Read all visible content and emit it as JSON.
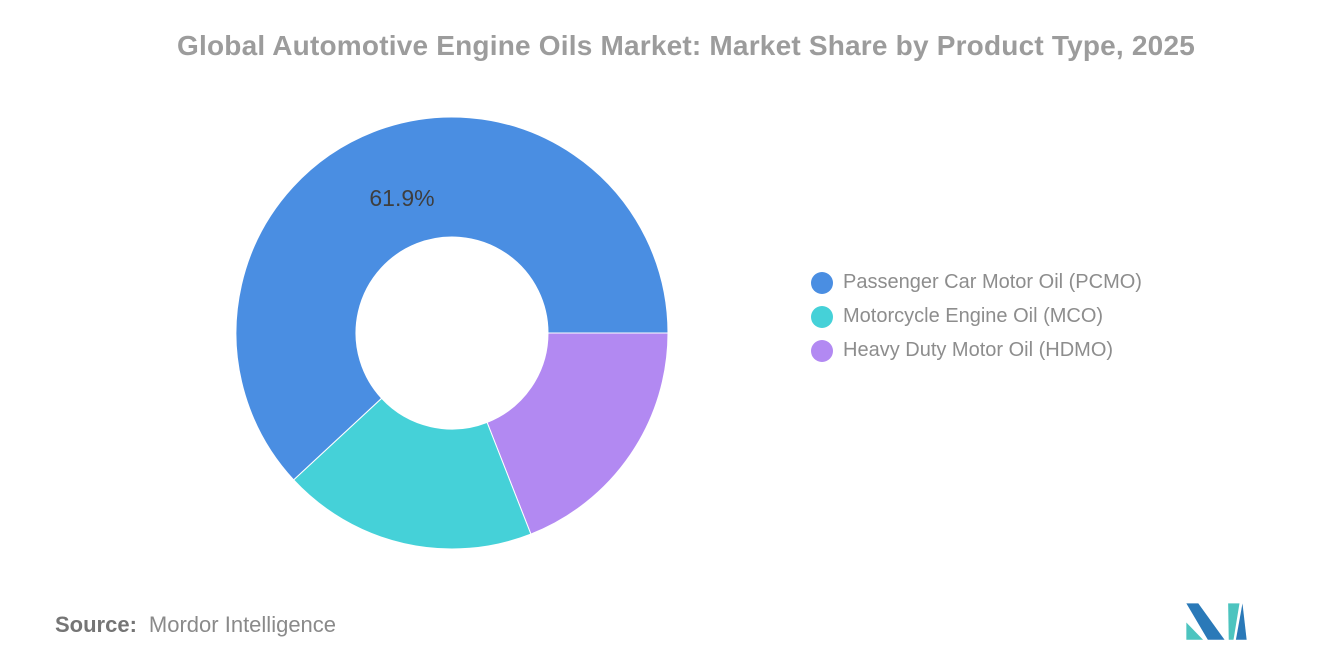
{
  "title": "Global Automotive Engine Oils Market: Market Share by Product Type, 2025",
  "chart_data": {
    "type": "pie",
    "subtype": "donut",
    "title": "Global Automotive Engine Oils Market: Market Share by Product Type, 2025",
    "unit": "%",
    "segments": [
      {
        "label": "Passenger Car Motor Oil (PCMO)",
        "abbr": "PCMO",
        "value": 61.9,
        "color": "#4a8ee2",
        "data_label": "61.9%"
      },
      {
        "label": "Motorcycle Engine Oil (MCO)",
        "abbr": "MCO",
        "value": 19.05,
        "color": "#45d1d8",
        "data_label": ""
      },
      {
        "label": "Heavy Duty Motor Oil (HDMO)",
        "abbr": "HDMO",
        "value": 19.05,
        "color": "#b289f2",
        "data_label": ""
      }
    ],
    "visible_data_label": "61.9%",
    "legend_position": "right",
    "inner_radius_pct": 44,
    "start_angle_deg": 90,
    "direction": "clockwise",
    "draw_order": "reversed-legend-order",
    "border_color": "#ffffff"
  },
  "source": {
    "label": "Source:",
    "value": "Mordor Intelligence"
  },
  "brand": {
    "logo_blue": "#2a79b8",
    "logo_teal": "#4cc4bf"
  }
}
